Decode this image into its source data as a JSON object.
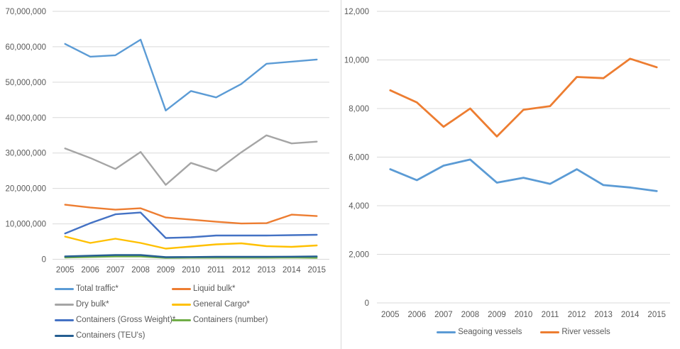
{
  "page": {
    "background_color": "#ffffff",
    "divider_color": "#d9d9d9",
    "text_color": "#595959",
    "gridline_color": "#d9d9d9"
  },
  "chart_data": [
    {
      "id": "cargo-traffic-chart",
      "type": "line",
      "title": "",
      "xlabel": "",
      "ylabel": "",
      "grid": true,
      "legend_position": "bottom-left-two-columns",
      "x_categories": [
        "2005",
        "2006",
        "2007",
        "2008",
        "2009",
        "2010",
        "2011",
        "2012",
        "2013",
        "2014",
        "2015"
      ],
      "ylim": [
        0,
        70000000
      ],
      "y_tick_labels": [
        "0",
        "10,000,000",
        "20,000,000",
        "30,000,000",
        "40,000,000",
        "50,000,000",
        "60,000,000",
        "70,000,000"
      ],
      "series": [
        {
          "name": "Total traffic*",
          "color": "#5B9BD5",
          "values": [
            60800000,
            57200000,
            57600000,
            62000000,
            42000000,
            47500000,
            45700000,
            49500000,
            55200000,
            55800000,
            56400000
          ]
        },
        {
          "name": "Liquid bulk*",
          "color": "#ED7D31",
          "values": [
            15400000,
            14600000,
            14000000,
            14400000,
            11800000,
            11200000,
            10600000,
            10100000,
            10200000,
            12600000,
            12200000
          ]
        },
        {
          "name": "Dry bulk*",
          "color": "#A5A5A5",
          "values": [
            31300000,
            28600000,
            25500000,
            30300000,
            21000000,
            27200000,
            24900000,
            30200000,
            35000000,
            32700000,
            33200000
          ]
        },
        {
          "name": "General Cargo*",
          "color": "#FFC000",
          "values": [
            6400000,
            4600000,
            5800000,
            4600000,
            3000000,
            3600000,
            4200000,
            4500000,
            3700000,
            3500000,
            3900000
          ]
        },
        {
          "name": "Containers (Gross Weight)*",
          "color": "#4472C4",
          "values": [
            7300000,
            10200000,
            12700000,
            13200000,
            6000000,
            6200000,
            6700000,
            6700000,
            6700000,
            6800000,
            6900000
          ]
        },
        {
          "name": "Containers (number)",
          "color": "#70AD47",
          "values": [
            500000,
            650000,
            800000,
            800000,
            400000,
            450000,
            450000,
            450000,
            450000,
            500000,
            400000
          ]
        },
        {
          "name": "Containers (TEU's)",
          "color": "#255E91",
          "values": [
            800000,
            1000000,
            1200000,
            1200000,
            600000,
            650000,
            700000,
            700000,
            700000,
            750000,
            800000
          ]
        }
      ]
    },
    {
      "id": "vessels-chart",
      "type": "line",
      "title": "",
      "xlabel": "",
      "ylabel": "",
      "grid": true,
      "legend_position": "bottom-center",
      "x_categories": [
        "2005",
        "2006",
        "2007",
        "2008",
        "2009",
        "2010",
        "2011",
        "2012",
        "2013",
        "2014",
        "2015"
      ],
      "ylim": [
        0,
        12000
      ],
      "y_tick_labels": [
        "0",
        "2,000",
        "4,000",
        "6,000",
        "8,000",
        "10,000",
        "12,000"
      ],
      "series": [
        {
          "name": "Seagoing vessels",
          "color": "#5B9BD5",
          "values": [
            5500,
            5050,
            5650,
            5900,
            4950,
            5150,
            4900,
            5500,
            4850,
            4750,
            4600
          ]
        },
        {
          "name": "River vessels",
          "color": "#ED7D31",
          "values": [
            8750,
            8250,
            7250,
            8000,
            6850,
            7950,
            8100,
            9300,
            9250,
            10050,
            9700
          ]
        }
      ]
    }
  ]
}
